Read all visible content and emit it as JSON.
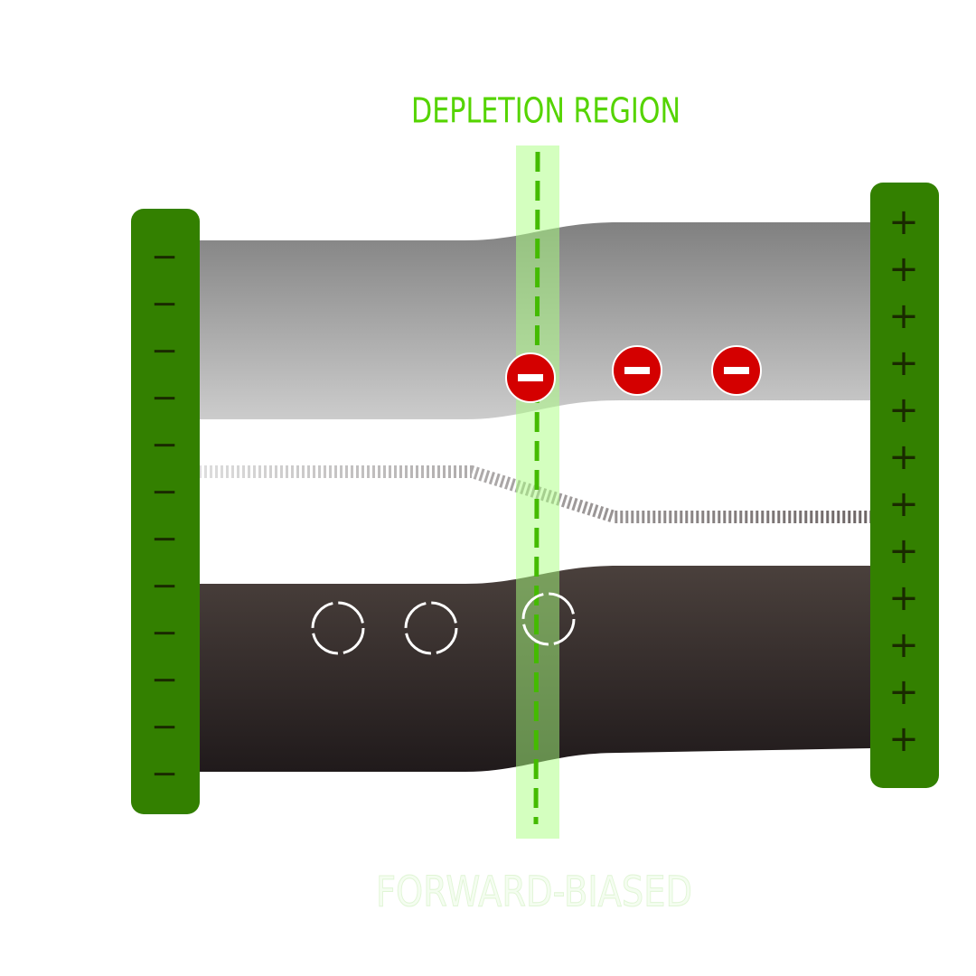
{
  "title": "DEPLETION REGION",
  "caption": "FORWARD-BIASED",
  "left_terminal": {
    "signs": [
      "−",
      "−",
      "−",
      "−",
      "−",
      "−",
      "−",
      "−",
      "−",
      "−",
      "−",
      "−"
    ]
  },
  "right_terminal": {
    "signs": [
      "+",
      "+",
      "+",
      "+",
      "+",
      "+",
      "+",
      "+",
      "+",
      "+",
      "+",
      "+"
    ]
  }
}
